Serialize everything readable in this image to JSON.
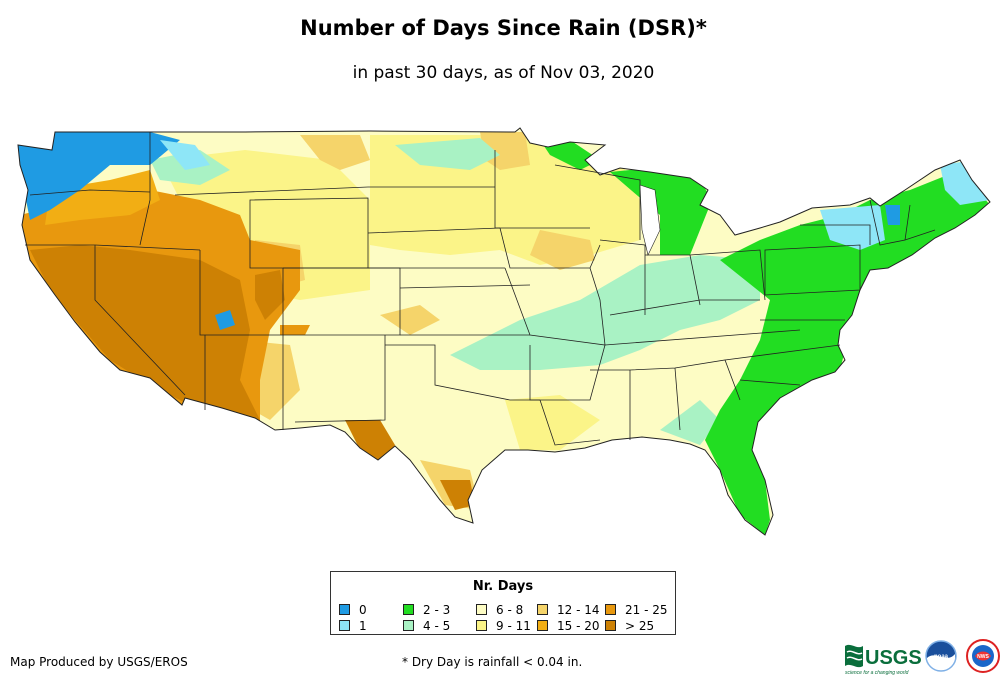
{
  "title": "Number of Days Since Rain (DSR)*",
  "subtitle": "in past 30 days, as of Nov 03, 2020",
  "legend": {
    "title": "Nr. Days",
    "items": [
      {
        "label": "0",
        "color": "#1f9be3"
      },
      {
        "label": "1",
        "color": "#8ee6f7"
      },
      {
        "label": "2 - 3",
        "color": "#22dd22"
      },
      {
        "label": "4 - 5",
        "color": "#a9f2c4"
      },
      {
        "label": "6 - 8",
        "color": "#fdfcc4"
      },
      {
        "label": "9 - 11",
        "color": "#fbf488"
      },
      {
        "label": "12 - 14",
        "color": "#f5d46a"
      },
      {
        "label": "15 - 20",
        "color": "#f2ae14"
      },
      {
        "label": "21 - 25",
        "color": "#e8980e"
      },
      {
        "label": "> 25",
        "color": "#cd8104"
      }
    ]
  },
  "credit": "Map Produced by USGS/EROS",
  "footnote": "* Dry Day is rainfall < 0.04 in.",
  "logos": {
    "usgs_text": "USGS",
    "usgs_tagline": "science for a changing world",
    "noaa_text": "noaa",
    "nws_text": "NWS"
  }
}
